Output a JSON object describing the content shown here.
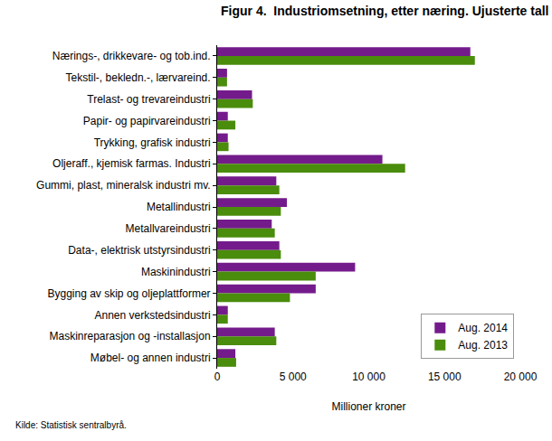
{
  "chart_data": {
    "type": "bar",
    "orientation": "horizontal",
    "title": "Figur 4.  Industriomsetning, etter næring. Ujusterte tall",
    "x_label": "Millioner kroner",
    "source": "Kilde: Statistisk sentralbyrå.",
    "categories": [
      "Nærings-, drikkevare- og tob.ind.",
      "Tekstil-, bekledn.-, lærvareind.",
      "Trelast- og trevareindustri",
      "Papir- og papirvareindustri",
      "Trykking, grafisk industri",
      "Oljeraff., kjemisk farmas. Industri",
      "Gummi, plast, mineralsk industri mv.",
      "Metallindustri",
      "Metallvareindustri",
      "Data-, elektrisk utstyrsindustri",
      "Maskinindustri",
      "Bygging av skip og oljeplattformer",
      "Annen verkstedsindustri",
      "Maskinreparasjon og -installasjon",
      "Møbel- og annen industri"
    ],
    "series": [
      {
        "name": "Aug. 2014",
        "color": "#741b8c",
        "values": [
          16700,
          650,
          2300,
          700,
          700,
          10900,
          3900,
          4600,
          3600,
          4100,
          9100,
          6500,
          700,
          3800,
          1200
        ]
      },
      {
        "name": "Aug. 2013",
        "color": "#4a8c0c",
        "values": [
          17000,
          650,
          2350,
          1200,
          750,
          12400,
          4100,
          4200,
          3800,
          4200,
          6500,
          4800,
          700,
          3900,
          1250
        ]
      }
    ],
    "xlim": [
      0,
      20000
    ],
    "xticks": [
      0,
      {
        "value": 5000,
        "label": "5 000"
      },
      {
        "value": 10000,
        "label": "10 000"
      },
      {
        "value": 15000,
        "label": "15 000"
      },
      {
        "value": 20000,
        "label": "20 000"
      }
    ],
    "grid": false,
    "legend": "bottom right"
  }
}
